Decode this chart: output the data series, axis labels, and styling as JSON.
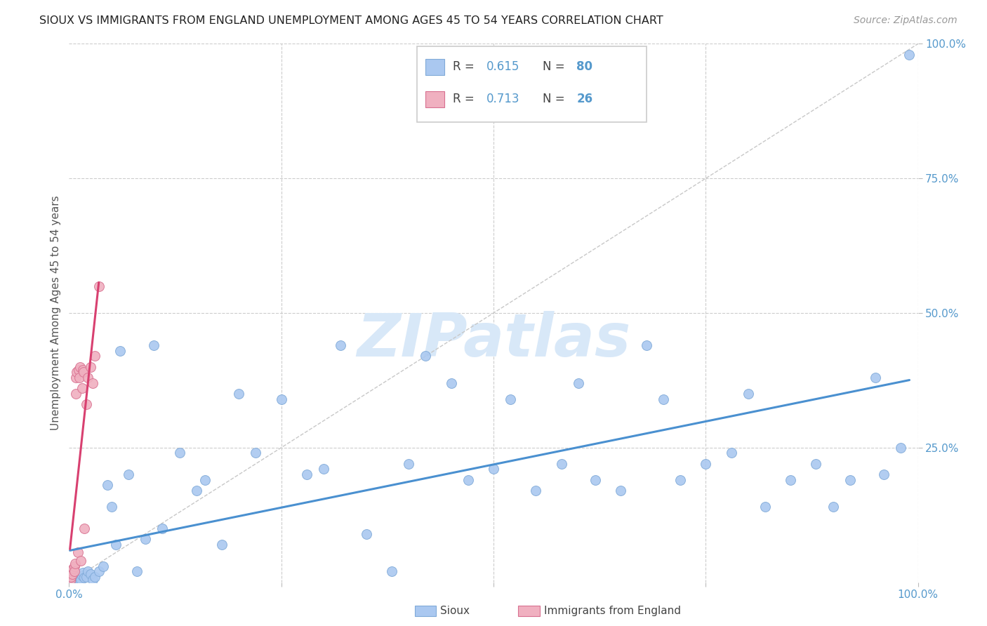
{
  "title": "SIOUX VS IMMIGRANTS FROM ENGLAND UNEMPLOYMENT AMONG AGES 45 TO 54 YEARS CORRELATION CHART",
  "source": "Source: ZipAtlas.com",
  "ylabel": "Unemployment Among Ages 45 to 54 years",
  "xlim": [
    0,
    1.0
  ],
  "ylim": [
    0,
    1.0
  ],
  "sioux_color": "#aac8f0",
  "sioux_edge_color": "#80aad8",
  "immigrants_color": "#f0b0c0",
  "immigrants_edge_color": "#d87090",
  "trend_sioux_color": "#4a90d0",
  "trend_immigrants_color": "#d84070",
  "diag_color": "#c8c8c8",
  "background_color": "#ffffff",
  "grid_color": "#cccccc",
  "tick_label_color": "#5599cc",
  "watermark_color": "#d8e8f8",
  "legend_r_sioux": "0.615",
  "legend_n_sioux": "80",
  "legend_r_immigrants": "0.713",
  "legend_n_immigrants": "26",
  "sioux_x": [
    0.001,
    0.002,
    0.002,
    0.003,
    0.003,
    0.004,
    0.004,
    0.005,
    0.005,
    0.006,
    0.006,
    0.007,
    0.007,
    0.008,
    0.008,
    0.009,
    0.009,
    0.01,
    0.01,
    0.011,
    0.012,
    0.013,
    0.014,
    0.015,
    0.016,
    0.018,
    0.02,
    0.022,
    0.025,
    0.028,
    0.03,
    0.035,
    0.04,
    0.045,
    0.05,
    0.055,
    0.06,
    0.07,
    0.08,
    0.09,
    0.1,
    0.11,
    0.13,
    0.15,
    0.16,
    0.18,
    0.2,
    0.22,
    0.25,
    0.28,
    0.3,
    0.32,
    0.35,
    0.38,
    0.4,
    0.42,
    0.45,
    0.47,
    0.5,
    0.52,
    0.55,
    0.58,
    0.6,
    0.62,
    0.65,
    0.68,
    0.7,
    0.72,
    0.75,
    0.78,
    0.8,
    0.82,
    0.85,
    0.88,
    0.9,
    0.92,
    0.95,
    0.96,
    0.98,
    0.99
  ],
  "sioux_y": [
    0.005,
    0.008,
    0.01,
    0.003,
    0.012,
    0.006,
    0.015,
    0.004,
    0.009,
    0.007,
    0.002,
    0.01,
    0.003,
    0.005,
    0.012,
    0.008,
    0.002,
    0.004,
    0.01,
    0.006,
    0.003,
    0.008,
    0.005,
    0.012,
    0.018,
    0.008,
    0.01,
    0.02,
    0.015,
    0.005,
    0.01,
    0.02,
    0.03,
    0.18,
    0.14,
    0.07,
    0.43,
    0.2,
    0.02,
    0.08,
    0.44,
    0.1,
    0.24,
    0.17,
    0.19,
    0.07,
    0.35,
    0.24,
    0.34,
    0.2,
    0.21,
    0.44,
    0.09,
    0.02,
    0.22,
    0.42,
    0.37,
    0.19,
    0.21,
    0.34,
    0.17,
    0.22,
    0.37,
    0.19,
    0.17,
    0.44,
    0.34,
    0.19,
    0.22,
    0.24,
    0.35,
    0.14,
    0.19,
    0.22,
    0.14,
    0.19,
    0.38,
    0.2,
    0.25,
    0.98
  ],
  "immigrants_x": [
    0.001,
    0.002,
    0.003,
    0.004,
    0.005,
    0.006,
    0.006,
    0.007,
    0.008,
    0.008,
    0.009,
    0.01,
    0.011,
    0.012,
    0.013,
    0.014,
    0.015,
    0.016,
    0.017,
    0.018,
    0.02,
    0.022,
    0.025,
    0.028,
    0.03,
    0.035
  ],
  "immigrants_y": [
    0.003,
    0.01,
    0.02,
    0.015,
    0.025,
    0.03,
    0.02,
    0.035,
    0.38,
    0.35,
    0.39,
    0.055,
    0.395,
    0.38,
    0.4,
    0.04,
    0.36,
    0.395,
    0.39,
    0.1,
    0.33,
    0.38,
    0.4,
    0.37,
    0.42,
    0.55
  ]
}
